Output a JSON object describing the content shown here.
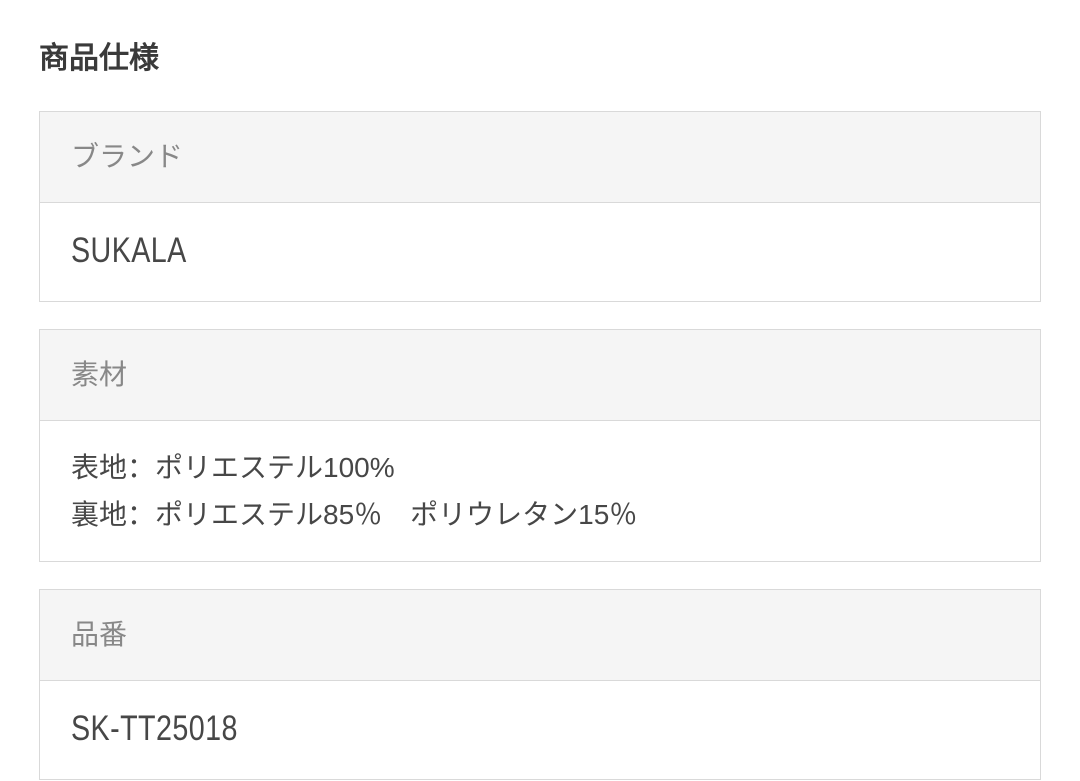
{
  "title": "商品仕様",
  "colors": {
    "title_text": "#3a3a3a",
    "label_text": "#888888",
    "value_text": "#474747",
    "header_bg": "#f5f5f5",
    "border": "#d9d9d9"
  },
  "specs": [
    {
      "label": "ブランド",
      "values": [
        "SUKALA"
      ]
    },
    {
      "label": "素材",
      "values": [
        "表地：ポリエステル100%",
        "裏地：ポリエステル85％　ポリウレタン15％"
      ]
    },
    {
      "label": "品番",
      "values": [
        "SK-TT25018"
      ]
    }
  ]
}
